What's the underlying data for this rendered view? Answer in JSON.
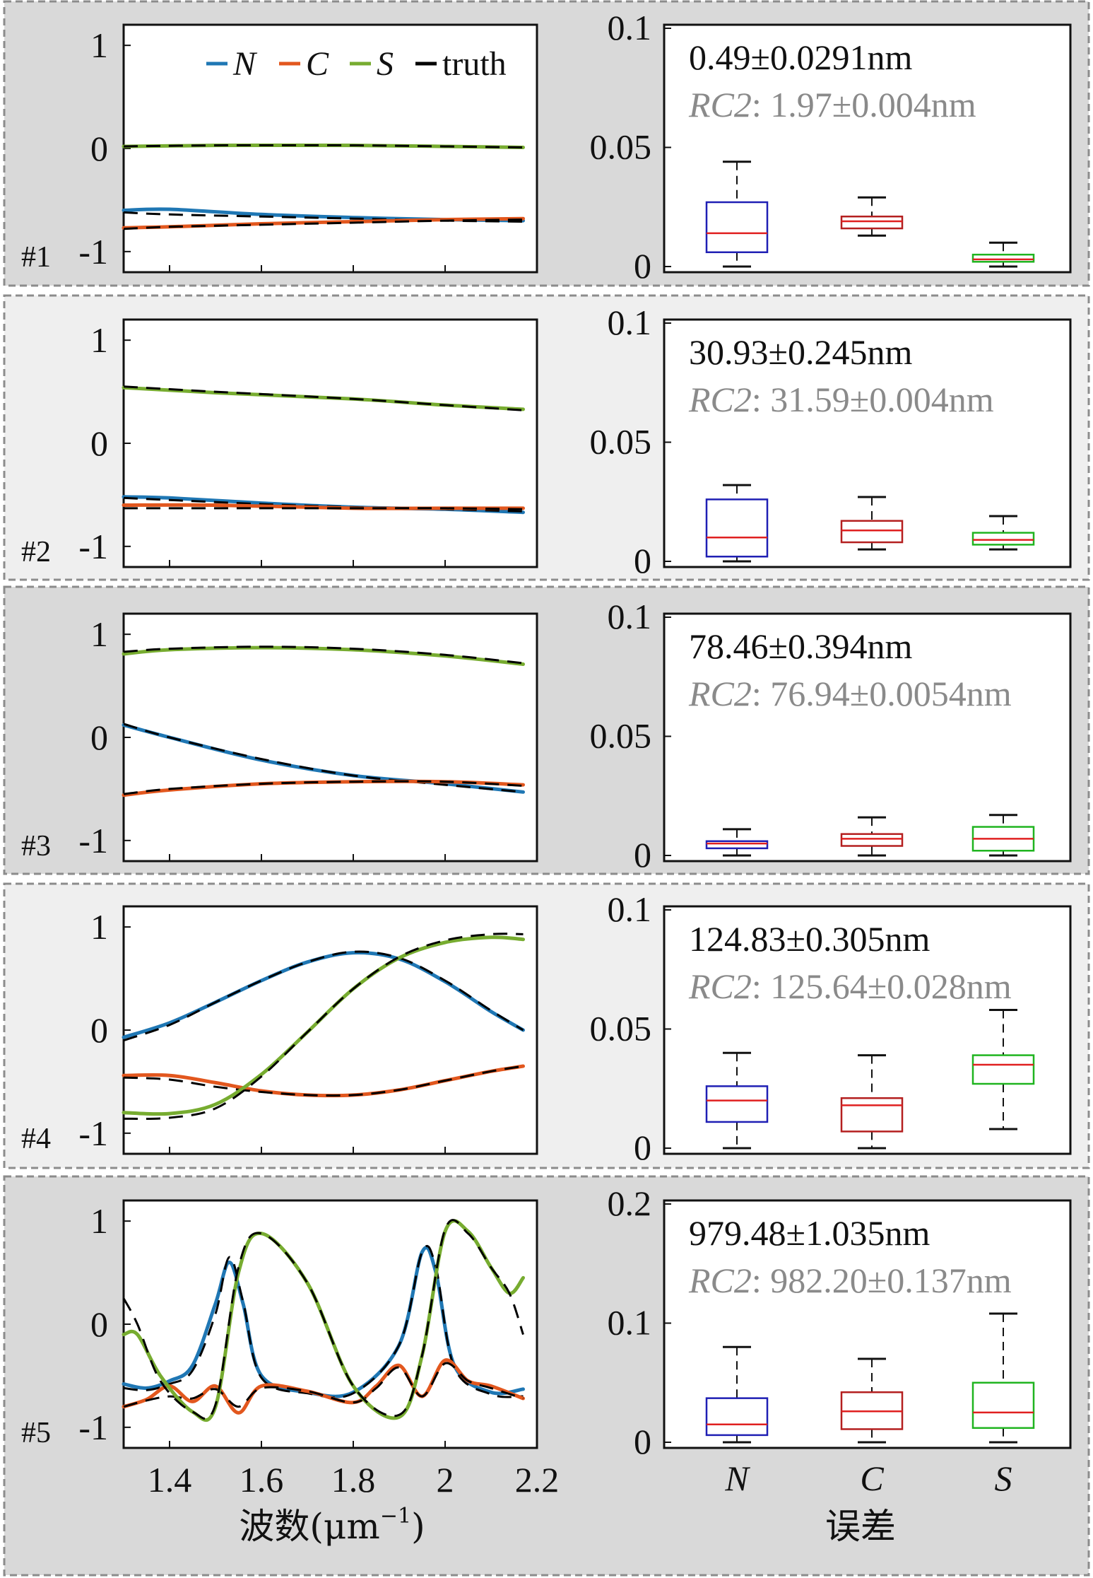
{
  "colors": {
    "N": "#1f77b4",
    "C": "#e2571e",
    "S": "#77ac30",
    "truth": "#000000",
    "box_N": "#1f1fb4",
    "box_C": "#b41f1f",
    "box_S": "#1fb41f",
    "median": "#e02020",
    "rc2": "#8a8a8a"
  },
  "legend": [
    {
      "key": "N",
      "label": "N",
      "italic": true
    },
    {
      "key": "C",
      "label": "C",
      "italic": true
    },
    {
      "key": "S",
      "label": "S",
      "italic": true
    },
    {
      "key": "truth",
      "label": "truth",
      "italic": false
    }
  ],
  "xlabel": {
    "prefix": "波数(μm",
    "sup": "−1",
    "suffix": ")"
  },
  "box_xlabel": "误差",
  "chart_data": [
    {
      "type": "line",
      "tag": "#1",
      "xlim": [
        1.3,
        2.2
      ],
      "ylim": [
        -1.2,
        1.2
      ],
      "xticks": [
        "1.4",
        "1.6",
        "1.8",
        "2",
        "2.2"
      ],
      "yticks": [
        1,
        0,
        -1
      ],
      "series": [
        {
          "name": "N",
          "x": [
            1.3,
            1.4,
            1.6,
            1.8,
            2.0,
            2.17
          ],
          "y": [
            -0.6,
            -0.59,
            -0.64,
            -0.67,
            -0.69,
            -0.7
          ],
          "truth": [
            -0.62,
            -0.64,
            -0.66,
            -0.68,
            -0.7,
            -0.71
          ]
        },
        {
          "name": "C",
          "x": [
            1.3,
            1.4,
            1.6,
            1.8,
            2.0,
            2.17
          ],
          "y": [
            -0.77,
            -0.76,
            -0.73,
            -0.71,
            -0.69,
            -0.68
          ],
          "truth": [
            -0.78,
            -0.76,
            -0.74,
            -0.72,
            -0.7,
            -0.69
          ]
        },
        {
          "name": "S",
          "x": [
            1.3,
            1.5,
            1.8,
            2.0,
            2.17
          ],
          "y": [
            0.02,
            0.03,
            0.03,
            0.02,
            0.01
          ],
          "truth": [
            0.02,
            0.03,
            0.03,
            0.02,
            0.01
          ]
        }
      ]
    },
    {
      "type": "line",
      "tag": "#2",
      "xlim": [
        1.3,
        2.2
      ],
      "ylim": [
        -1.2,
        1.2
      ],
      "xticks": [
        "1.4",
        "1.6",
        "1.8",
        "2",
        "2.2"
      ],
      "yticks": [
        1,
        0,
        -1
      ],
      "series": [
        {
          "name": "N",
          "x": [
            1.3,
            1.4,
            1.6,
            1.8,
            2.0,
            2.17
          ],
          "y": [
            -0.52,
            -0.53,
            -0.58,
            -0.62,
            -0.64,
            -0.67
          ],
          "truth": [
            -0.53,
            -0.55,
            -0.59,
            -0.62,
            -0.64,
            -0.66
          ]
        },
        {
          "name": "C",
          "x": [
            1.3,
            1.5,
            1.8,
            2.0,
            2.17
          ],
          "y": [
            -0.6,
            -0.6,
            -0.63,
            -0.63,
            -0.63
          ],
          "truth": [
            -0.63,
            -0.63,
            -0.63,
            -0.63,
            -0.64
          ]
        },
        {
          "name": "S",
          "x": [
            1.3,
            1.5,
            1.8,
            2.0,
            2.17
          ],
          "y": [
            0.54,
            0.49,
            0.43,
            0.37,
            0.33
          ],
          "truth": [
            0.55,
            0.5,
            0.43,
            0.37,
            0.32
          ]
        }
      ]
    },
    {
      "type": "line",
      "tag": "#3",
      "xlim": [
        1.3,
        2.2
      ],
      "ylim": [
        -1.2,
        1.2
      ],
      "xticks": [
        "1.4",
        "1.6",
        "1.8",
        "2",
        "2.2"
      ],
      "yticks": [
        1,
        0,
        -1
      ],
      "series": [
        {
          "name": "N",
          "x": [
            1.3,
            1.4,
            1.6,
            1.8,
            2.0,
            2.17
          ],
          "y": [
            0.12,
            0.0,
            -0.22,
            -0.37,
            -0.45,
            -0.53
          ],
          "truth": [
            0.13,
            0.0,
            -0.21,
            -0.37,
            -0.46,
            -0.53
          ]
        },
        {
          "name": "C",
          "x": [
            1.3,
            1.4,
            1.6,
            1.8,
            2.0,
            2.17
          ],
          "y": [
            -0.56,
            -0.51,
            -0.45,
            -0.43,
            -0.43,
            -0.46
          ],
          "truth": [
            -0.55,
            -0.5,
            -0.45,
            -0.43,
            -0.43,
            -0.47
          ]
        },
        {
          "name": "S",
          "x": [
            1.3,
            1.4,
            1.6,
            1.8,
            2.0,
            2.17
          ],
          "y": [
            0.81,
            0.85,
            0.87,
            0.85,
            0.79,
            0.71
          ],
          "truth": [
            0.83,
            0.86,
            0.88,
            0.86,
            0.8,
            0.72
          ]
        }
      ]
    },
    {
      "type": "line",
      "tag": "#4",
      "xlim": [
        1.3,
        2.2
      ],
      "ylim": [
        -1.2,
        1.2
      ],
      "xticks": [
        "1.4",
        "1.6",
        "1.8",
        "2",
        "2.2"
      ],
      "yticks": [
        1,
        0,
        -1
      ],
      "series": [
        {
          "name": "N",
          "x": [
            1.3,
            1.4,
            1.5,
            1.6,
            1.7,
            1.8,
            1.9,
            2.0,
            2.1,
            2.17
          ],
          "y": [
            -0.07,
            0.07,
            0.27,
            0.48,
            0.66,
            0.75,
            0.69,
            0.47,
            0.18,
            0.0
          ],
          "truth": [
            -0.1,
            0.05,
            0.27,
            0.48,
            0.66,
            0.76,
            0.7,
            0.48,
            0.19,
            0.0
          ]
        },
        {
          "name": "C",
          "x": [
            1.3,
            1.4,
            1.5,
            1.6,
            1.7,
            1.8,
            1.9,
            2.0,
            2.1,
            2.17
          ],
          "y": [
            -0.44,
            -0.44,
            -0.51,
            -0.59,
            -0.63,
            -0.63,
            -0.58,
            -0.49,
            -0.4,
            -0.35
          ],
          "truth": [
            -0.46,
            -0.48,
            -0.55,
            -0.6,
            -0.63,
            -0.63,
            -0.58,
            -0.49,
            -0.4,
            -0.35
          ]
        },
        {
          "name": "S",
          "x": [
            1.3,
            1.4,
            1.5,
            1.6,
            1.7,
            1.8,
            1.9,
            2.0,
            2.1,
            2.17
          ],
          "y": [
            -0.8,
            -0.81,
            -0.72,
            -0.43,
            -0.02,
            0.4,
            0.7,
            0.85,
            0.9,
            0.88
          ],
          "truth": [
            -0.86,
            -0.85,
            -0.76,
            -0.45,
            -0.02,
            0.4,
            0.71,
            0.87,
            0.93,
            0.93
          ]
        }
      ]
    },
    {
      "type": "line",
      "tag": "#5",
      "xlim": [
        1.3,
        2.2
      ],
      "ylim": [
        -1.2,
        1.2
      ],
      "xticks": [
        "1.4",
        "1.6",
        "1.8",
        "2",
        "2.2"
      ],
      "yticks": [
        1,
        0,
        -1
      ],
      "series": [
        {
          "name": "N",
          "x": [
            1.3,
            1.35,
            1.4,
            1.45,
            1.5,
            1.53,
            1.56,
            1.6,
            1.7,
            1.8,
            1.9,
            1.95,
            1.98,
            2.02,
            2.1,
            2.17
          ],
          "y": [
            -0.58,
            -0.62,
            -0.55,
            -0.4,
            0.2,
            0.6,
            0.2,
            -0.5,
            -0.66,
            -0.66,
            -0.2,
            0.7,
            0.5,
            -0.4,
            -0.66,
            -0.63
          ],
          "truth": [
            -0.62,
            -0.64,
            -0.58,
            -0.45,
            0.1,
            0.65,
            0.22,
            -0.52,
            -0.67,
            -0.67,
            -0.2,
            0.7,
            0.55,
            -0.42,
            -0.68,
            -0.7
          ]
        },
        {
          "name": "C",
          "x": [
            1.3,
            1.35,
            1.4,
            1.45,
            1.5,
            1.55,
            1.6,
            1.7,
            1.8,
            1.85,
            1.9,
            1.95,
            2.0,
            2.05,
            2.1,
            2.17
          ],
          "y": [
            -0.8,
            -0.73,
            -0.6,
            -0.75,
            -0.6,
            -0.86,
            -0.6,
            -0.65,
            -0.76,
            -0.6,
            -0.4,
            -0.7,
            -0.35,
            -0.55,
            -0.6,
            -0.72
          ],
          "truth": [
            -0.8,
            -0.74,
            -0.7,
            -0.72,
            -0.63,
            -0.8,
            -0.62,
            -0.65,
            -0.76,
            -0.62,
            -0.42,
            -0.7,
            -0.38,
            -0.55,
            -0.62,
            -0.72
          ]
        },
        {
          "name": "S",
          "x": [
            1.3,
            1.33,
            1.38,
            1.45,
            1.5,
            1.55,
            1.6,
            1.7,
            1.8,
            1.9,
            1.95,
            2.0,
            2.05,
            2.1,
            2.14,
            2.17
          ],
          "y": [
            -0.1,
            -0.1,
            -0.5,
            -0.85,
            -0.8,
            0.5,
            0.88,
            0.4,
            -0.6,
            -0.9,
            -0.3,
            0.9,
            0.9,
            0.55,
            0.3,
            0.45
          ],
          "truth": [
            0.25,
            0.0,
            -0.55,
            -0.85,
            -0.78,
            0.55,
            0.88,
            0.4,
            -0.6,
            -0.88,
            -0.3,
            0.92,
            0.88,
            0.55,
            0.3,
            -0.1
          ]
        }
      ]
    },
    {
      "type": "box",
      "ylim": [
        0,
        0.1
      ],
      "yticks": [
        "0.1",
        "0.05",
        "0"
      ],
      "stat": "0.49±0.0291nm",
      "rc2_label": "RC2",
      "rc2_value": ": 1.97±0.004nm",
      "categories": [
        "N",
        "C",
        "S"
      ],
      "boxes": [
        {
          "name": "N",
          "min": 0.0,
          "q1": 0.006,
          "median": 0.014,
          "q3": 0.027,
          "max": 0.044
        },
        {
          "name": "C",
          "min": 0.013,
          "q1": 0.016,
          "median": 0.019,
          "q3": 0.021,
          "max": 0.029
        },
        {
          "name": "S",
          "min": 0.0,
          "q1": 0.002,
          "median": 0.003,
          "q3": 0.005,
          "max": 0.01
        }
      ]
    },
    {
      "type": "box",
      "ylim": [
        0,
        0.1
      ],
      "yticks": [
        "0.1",
        "0.05",
        "0"
      ],
      "stat": "30.93±0.245nm",
      "rc2_label": "RC2",
      "rc2_value": ": 31.59±0.004nm",
      "categories": [
        "N",
        "C",
        "S"
      ],
      "boxes": [
        {
          "name": "N",
          "min": 0.0,
          "q1": 0.002,
          "median": 0.01,
          "q3": 0.026,
          "max": 0.032
        },
        {
          "name": "C",
          "min": 0.005,
          "q1": 0.008,
          "median": 0.013,
          "q3": 0.017,
          "max": 0.027
        },
        {
          "name": "S",
          "min": 0.005,
          "q1": 0.007,
          "median": 0.009,
          "q3": 0.012,
          "max": 0.019
        }
      ]
    },
    {
      "type": "box",
      "ylim": [
        0,
        0.1
      ],
      "yticks": [
        "0.1",
        "0.05",
        "0"
      ],
      "stat": "78.46±0.394nm",
      "rc2_label": "RC2",
      "rc2_value": ": 76.94±0.0054nm",
      "categories": [
        "N",
        "C",
        "S"
      ],
      "boxes": [
        {
          "name": "N",
          "min": 0.0,
          "q1": 0.003,
          "median": 0.005,
          "q3": 0.006,
          "max": 0.011
        },
        {
          "name": "C",
          "min": 0.0,
          "q1": 0.004,
          "median": 0.007,
          "q3": 0.009,
          "max": 0.016
        },
        {
          "name": "S",
          "min": 0.0,
          "q1": 0.002,
          "median": 0.007,
          "q3": 0.012,
          "max": 0.017
        }
      ]
    },
    {
      "type": "box",
      "ylim": [
        0,
        0.1
      ],
      "yticks": [
        "0.1",
        "0.05",
        "0"
      ],
      "stat": "124.83±0.305nm",
      "rc2_label": "RC2",
      "rc2_value": ": 125.64±0.028nm",
      "categories": [
        "N",
        "C",
        "S"
      ],
      "boxes": [
        {
          "name": "N",
          "min": 0.0,
          "q1": 0.011,
          "median": 0.02,
          "q3": 0.026,
          "max": 0.04
        },
        {
          "name": "C",
          "min": 0.0,
          "q1": 0.007,
          "median": 0.018,
          "q3": 0.021,
          "max": 0.039
        },
        {
          "name": "S",
          "min": 0.008,
          "q1": 0.027,
          "median": 0.035,
          "q3": 0.039,
          "max": 0.058
        }
      ]
    },
    {
      "type": "box",
      "ylim": [
        0,
        0.2
      ],
      "yticks": [
        "0.2",
        "0.1",
        "0"
      ],
      "stat": "979.48±1.035nm",
      "rc2_label": "RC2",
      "rc2_value": ": 982.20±0.137nm",
      "categories": [
        "N",
        "C",
        "S"
      ],
      "boxes": [
        {
          "name": "N",
          "min": 0.0,
          "q1": 0.006,
          "median": 0.015,
          "q3": 0.037,
          "max": 0.08
        },
        {
          "name": "C",
          "min": 0.0,
          "q1": 0.011,
          "median": 0.026,
          "q3": 0.042,
          "max": 0.07
        },
        {
          "name": "S",
          "min": 0.0,
          "q1": 0.012,
          "median": 0.025,
          "q3": 0.05,
          "max": 0.108
        }
      ]
    }
  ]
}
